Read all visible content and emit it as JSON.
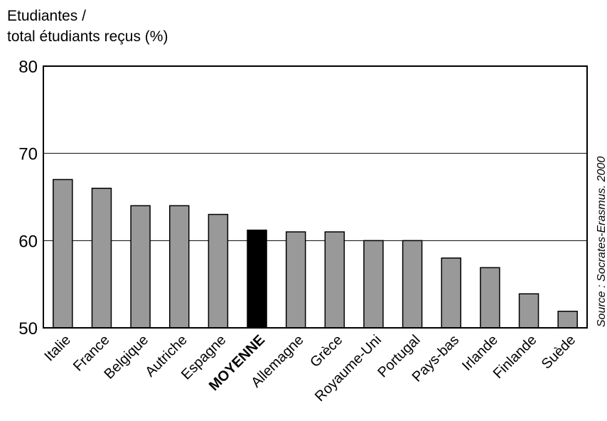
{
  "chart_data": {
    "type": "bar",
    "ylabel_lines": [
      "Etudiantes /",
      "total étudiants reçus (%)"
    ],
    "categories": [
      "Italie",
      "France",
      "Belgique",
      "Autriche",
      "Espagne",
      "MOYENNE",
      "Allemagne",
      "Grèce",
      "Royaume-Uni",
      "Portugal",
      "Pays-bas",
      "Irlande",
      "Finlande",
      "Suède"
    ],
    "values": [
      67,
      66,
      64,
      64,
      63,
      61.2,
      61,
      61,
      60,
      60,
      58,
      56.9,
      53.9,
      51.9
    ],
    "highlight": "MOYENNE",
    "ylim": [
      50,
      80
    ],
    "yticks": [
      50,
      60,
      70,
      80
    ],
    "grid": true,
    "bar_color": "#999999",
    "highlight_color": "#000000",
    "source": "Source : Socrates-Erasmus. 2000"
  }
}
